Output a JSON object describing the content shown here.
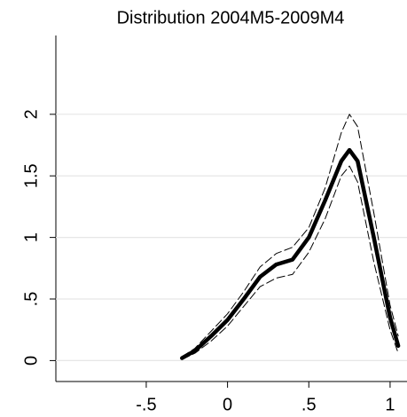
{
  "chart_data": {
    "type": "line",
    "title": "Distribution 2004M5-2009M4",
    "x": [
      -0.28,
      -0.2,
      -0.1,
      0,
      0.1,
      0.2,
      0.3,
      0.4,
      0.5,
      0.6,
      0.7,
      0.75,
      0.8,
      0.9,
      1.0,
      1.05
    ],
    "series": [
      {
        "color": "#000000",
        "style": "solid",
        "values": [
          0.02,
          0.08,
          0.2,
          0.33,
          0.5,
          0.68,
          0.78,
          0.82,
          1.0,
          1.3,
          1.62,
          1.71,
          1.62,
          1.0,
          0.35,
          0.12
        ]
      },
      {
        "color": "#000000",
        "style": "dashed",
        "values": [
          0.03,
          0.1,
          0.24,
          0.38,
          0.56,
          0.76,
          0.87,
          0.92,
          1.08,
          1.4,
          1.85,
          2.0,
          1.9,
          1.2,
          0.45,
          0.2
        ]
      },
      {
        "color": "#000000",
        "style": "dashed",
        "values": [
          0.01,
          0.06,
          0.16,
          0.28,
          0.44,
          0.6,
          0.67,
          0.7,
          0.88,
          1.15,
          1.5,
          1.58,
          1.45,
          0.8,
          0.25,
          0.06
        ]
      }
    ],
    "xlim": [
      -1.056,
      1.104
    ],
    "ylim": [
      -0.17,
      2.64
    ],
    "xticks": [
      {
        "value": -0.5,
        "label": "-.5"
      },
      0,
      {
        "value": 0.5,
        "label": ".5"
      },
      1
    ],
    "yticks": [
      0,
      {
        "value": 0.5,
        "label": ".5"
      },
      1,
      1.5,
      2
    ],
    "grid": true
  }
}
